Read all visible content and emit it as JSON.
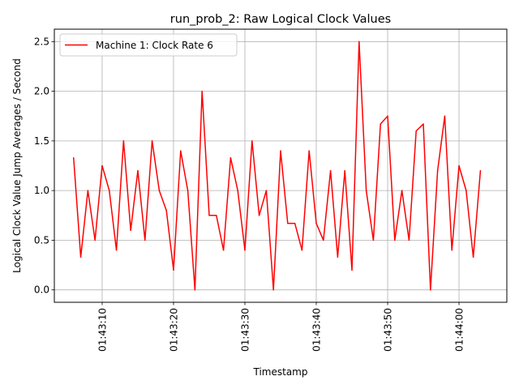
{
  "chart_data": {
    "type": "line",
    "title": "run_prob_2: Raw Logical Clock Values",
    "xlabel": "Timestamp",
    "ylabel": "Logical Clock Value Jump Averages / Second",
    "x_unit": "seconds after 01:43:00",
    "xlim": [
      3.3,
      66.7
    ],
    "ylim": [
      -0.125,
      2.625
    ],
    "grid": true,
    "legend_position": "upper left",
    "x_ticks": [
      {
        "value": 10,
        "label": "01:43:10"
      },
      {
        "value": 20,
        "label": "01:43:20"
      },
      {
        "value": 30,
        "label": "01:43:30"
      },
      {
        "value": 40,
        "label": "01:43:40"
      },
      {
        "value": 50,
        "label": "01:43:50"
      },
      {
        "value": 60,
        "label": "01:44:00"
      }
    ],
    "y_ticks": [
      {
        "value": 0.0,
        "label": "0.0"
      },
      {
        "value": 0.5,
        "label": "0.5"
      },
      {
        "value": 1.0,
        "label": "1.0"
      },
      {
        "value": 1.5,
        "label": "1.5"
      },
      {
        "value": 2.0,
        "label": "2.0"
      },
      {
        "value": 2.5,
        "label": "2.5"
      }
    ],
    "series": [
      {
        "name": "Machine 1: Clock Rate 6",
        "color": "#ff0000",
        "x": [
          6,
          7,
          8,
          9,
          10,
          11,
          12,
          13,
          14,
          15,
          16,
          17,
          18,
          19,
          20,
          21,
          22,
          23,
          24,
          25,
          26,
          27,
          28,
          29,
          30,
          31,
          32,
          33,
          34,
          35,
          36,
          37,
          38,
          39,
          40,
          41,
          42,
          43,
          44,
          45,
          46,
          47,
          48,
          49,
          50,
          51,
          52,
          53,
          54,
          55,
          56,
          57,
          58,
          59,
          60,
          61,
          62,
          63
        ],
        "y": [
          1.33,
          0.33,
          1.0,
          0.5,
          1.25,
          1.0,
          0.4,
          1.5,
          0.6,
          1.2,
          0.5,
          1.5,
          1.0,
          0.8,
          0.2,
          1.4,
          1.0,
          0.0,
          2.0,
          0.75,
          0.75,
          0.4,
          1.33,
          1.0,
          0.4,
          1.5,
          0.75,
          1.0,
          0.0,
          1.4,
          0.67,
          0.67,
          0.4,
          1.4,
          0.67,
          0.5,
          1.2,
          0.33,
          1.2,
          0.2,
          2.5,
          1.0,
          0.5,
          1.67,
          1.75,
          0.5,
          1.0,
          0.5,
          1.6,
          1.67,
          0.0,
          1.2,
          1.75,
          0.4,
          1.25,
          1.0,
          0.33,
          1.2
        ]
      }
    ]
  }
}
